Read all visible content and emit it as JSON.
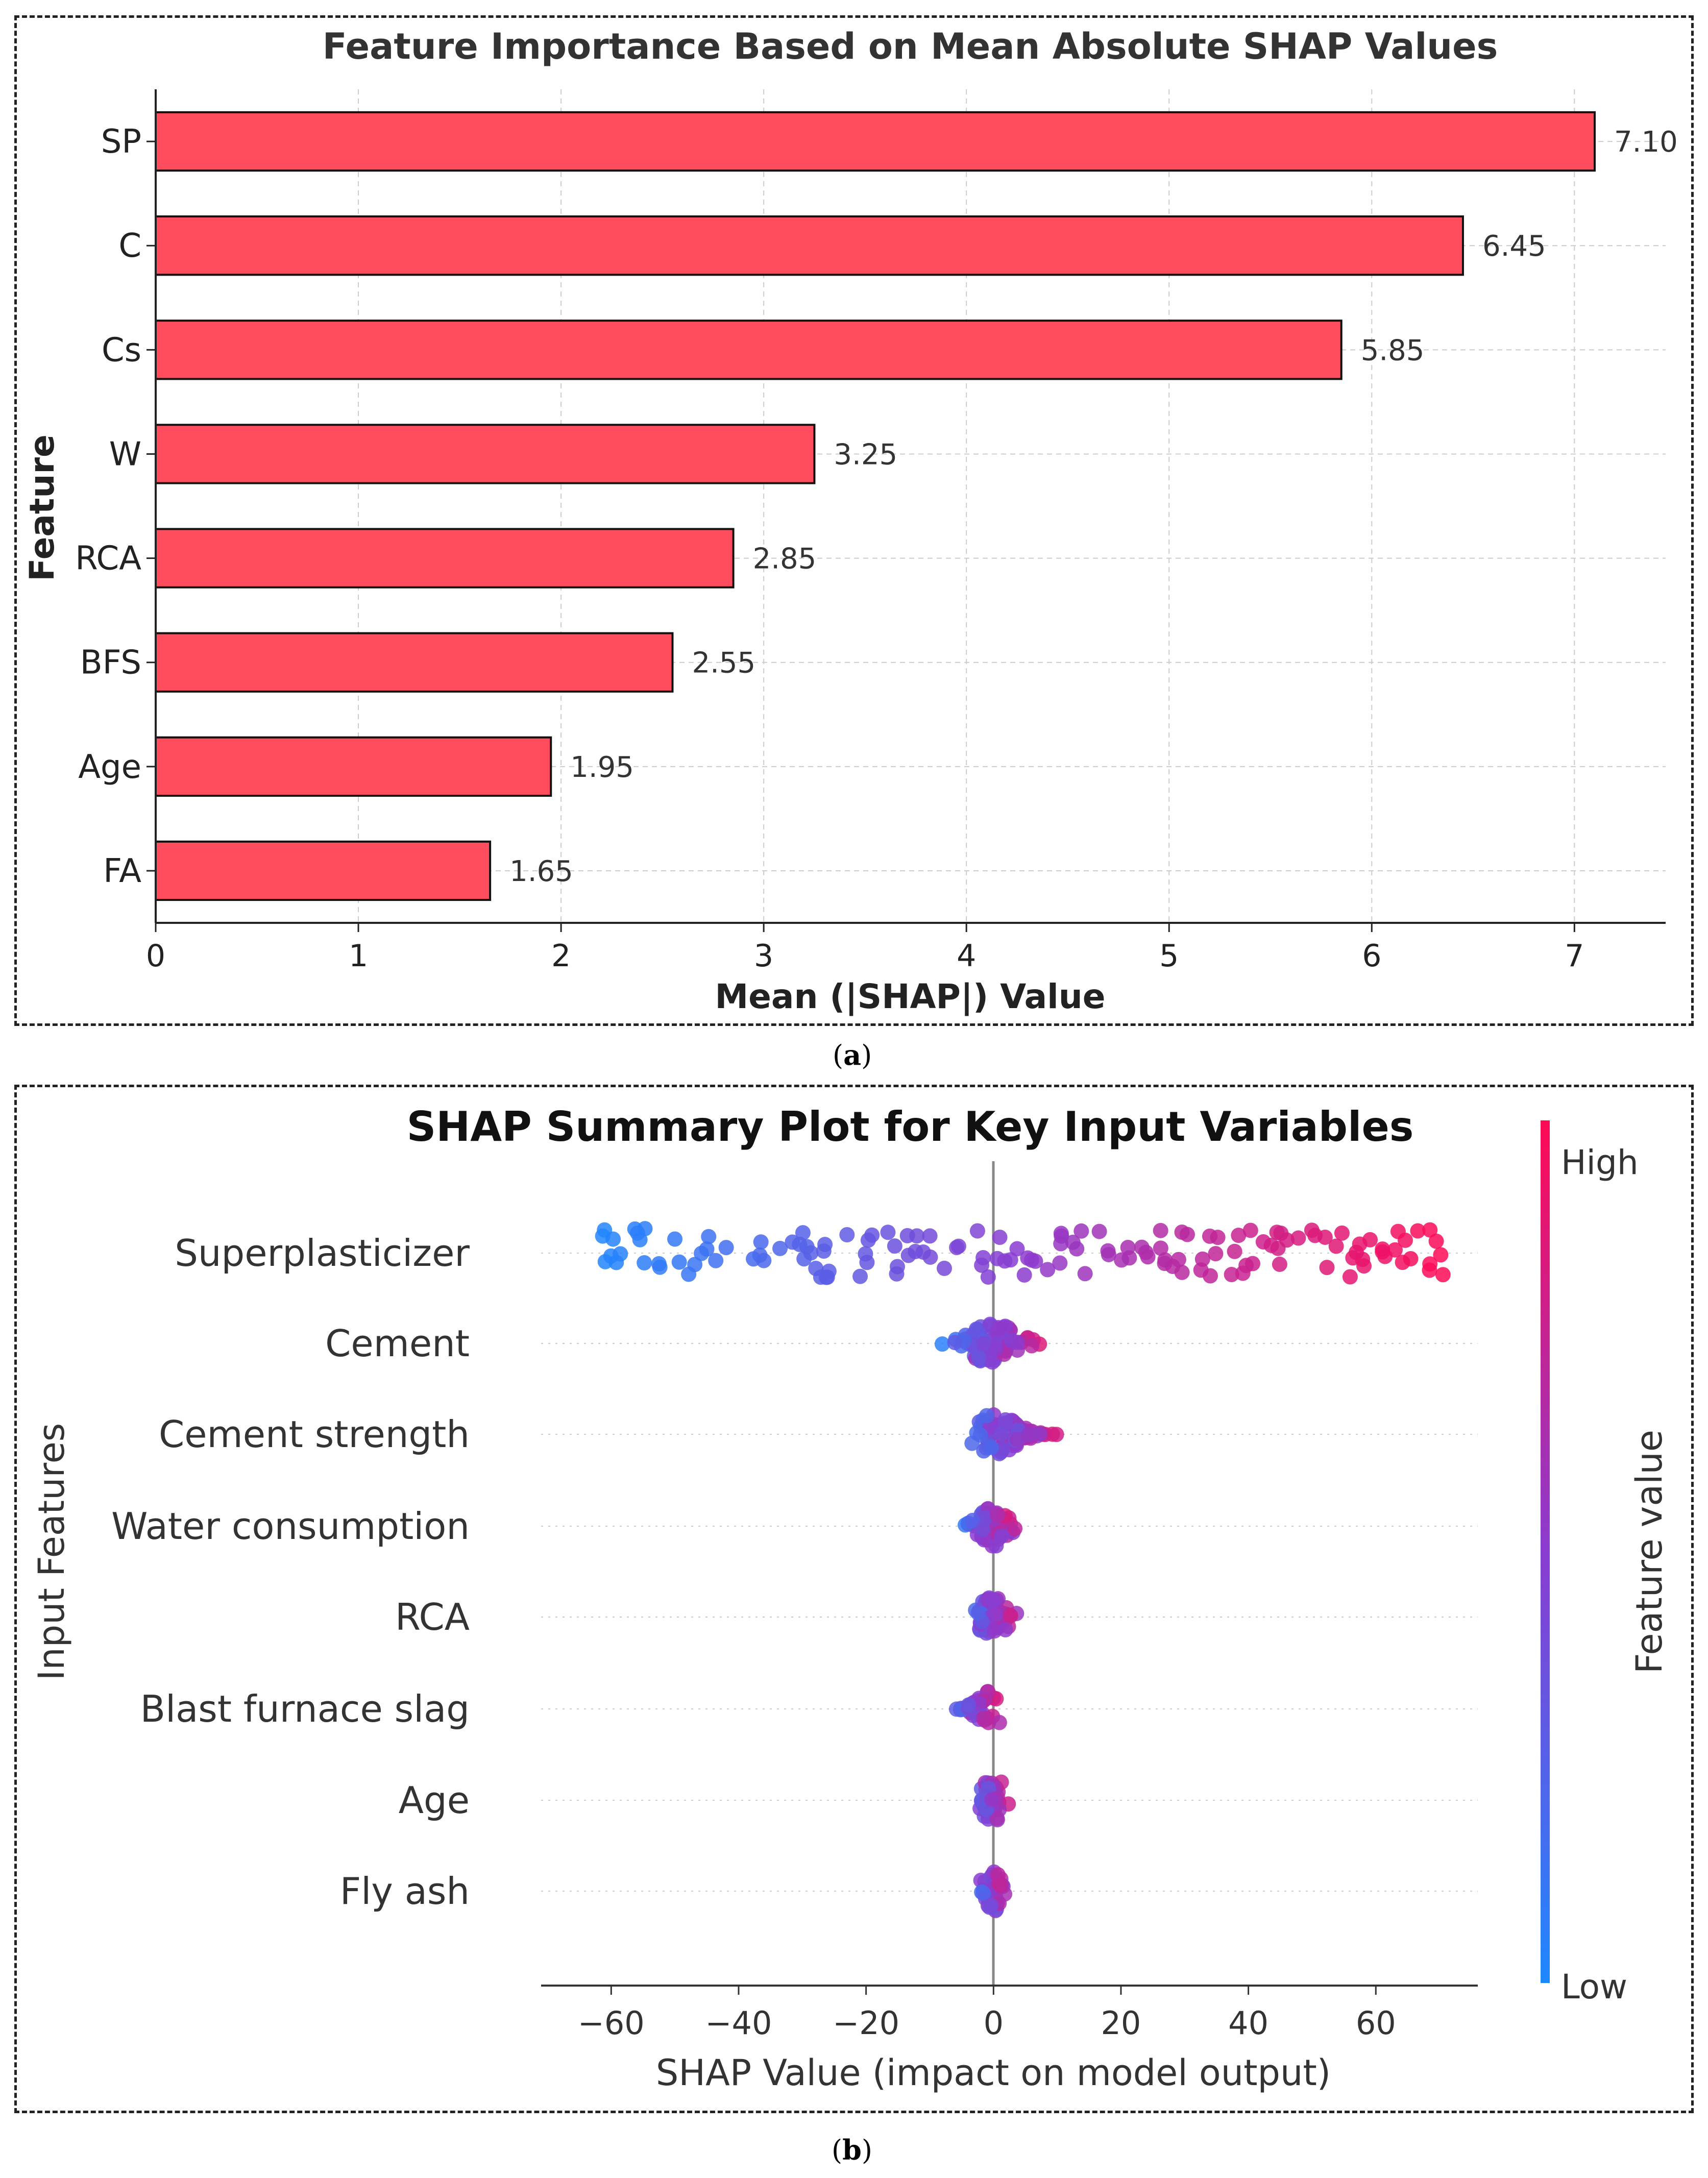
{
  "figure": {
    "panel_a_label": "a",
    "panel_b_label": "b"
  },
  "chart_data": [
    {
      "type": "bar",
      "orientation": "horizontal",
      "title": "Feature Importance Based on Mean Absolute SHAP Values",
      "xlabel": "Mean (|SHAP|) Value",
      "ylabel": "Feature",
      "categories": [
        "SP",
        "C",
        "Cs",
        "W",
        "RCA",
        "BFS",
        "Age",
        "FA"
      ],
      "values": [
        7.1,
        6.45,
        5.85,
        3.25,
        2.85,
        2.55,
        1.95,
        1.65
      ],
      "value_labels": [
        "7.10",
        "6.45",
        "5.85",
        "3.25",
        "2.85",
        "2.55",
        "1.95",
        "1.65"
      ],
      "xlim": [
        0,
        7.45
      ],
      "xticks": [
        0,
        1,
        2,
        3,
        4,
        5,
        6,
        7
      ],
      "grid": true,
      "bar_color": "#ff4d5e",
      "bar_edge_color": "#111111"
    },
    {
      "type": "scatter",
      "subtype": "beeswarm",
      "title": "SHAP Summary Plot for Key Input Variables",
      "xlabel": "SHAP Value (impact on model output)",
      "ylabel": "Input Features",
      "features": [
        "Superplasticizer",
        "Cement",
        "Cement strength",
        "Water consumption",
        "RCA",
        "Blast furnace slag",
        "Age",
        "Fly ash"
      ],
      "xlim": [
        -71,
        76
      ],
      "xticks": [
        -60,
        -40,
        -20,
        0,
        20,
        40,
        60
      ],
      "xtick_labels": [
        "−60",
        "−40",
        "−20",
        "0",
        "20",
        "40",
        "60"
      ],
      "spread": [
        {
          "min": -64,
          "max": 71,
          "seed": 11,
          "n": 150
        },
        {
          "min": -9,
          "max": 10,
          "seed": 23,
          "n": 70
        },
        {
          "min": -6,
          "max": 12,
          "seed": 37,
          "n": 80
        },
        {
          "min": -6,
          "max": 5,
          "seed": 41,
          "n": 60
        },
        {
          "min": -5,
          "max": 5,
          "seed": 53,
          "n": 55
        },
        {
          "min": -7,
          "max": 2,
          "seed": 67,
          "n": 40
        },
        {
          "min": -4,
          "max": 3,
          "seed": 71,
          "n": 40
        },
        {
          "min": -3,
          "max": 3,
          "seed": 89,
          "n": 35
        }
      ],
      "colorbar": {
        "label": "Feature value",
        "high_label": "High",
        "low_label": "Low",
        "low_color": "#1e88ff",
        "mid_color": "#8a3cd0",
        "high_color": "#ff0a54"
      }
    }
  ]
}
